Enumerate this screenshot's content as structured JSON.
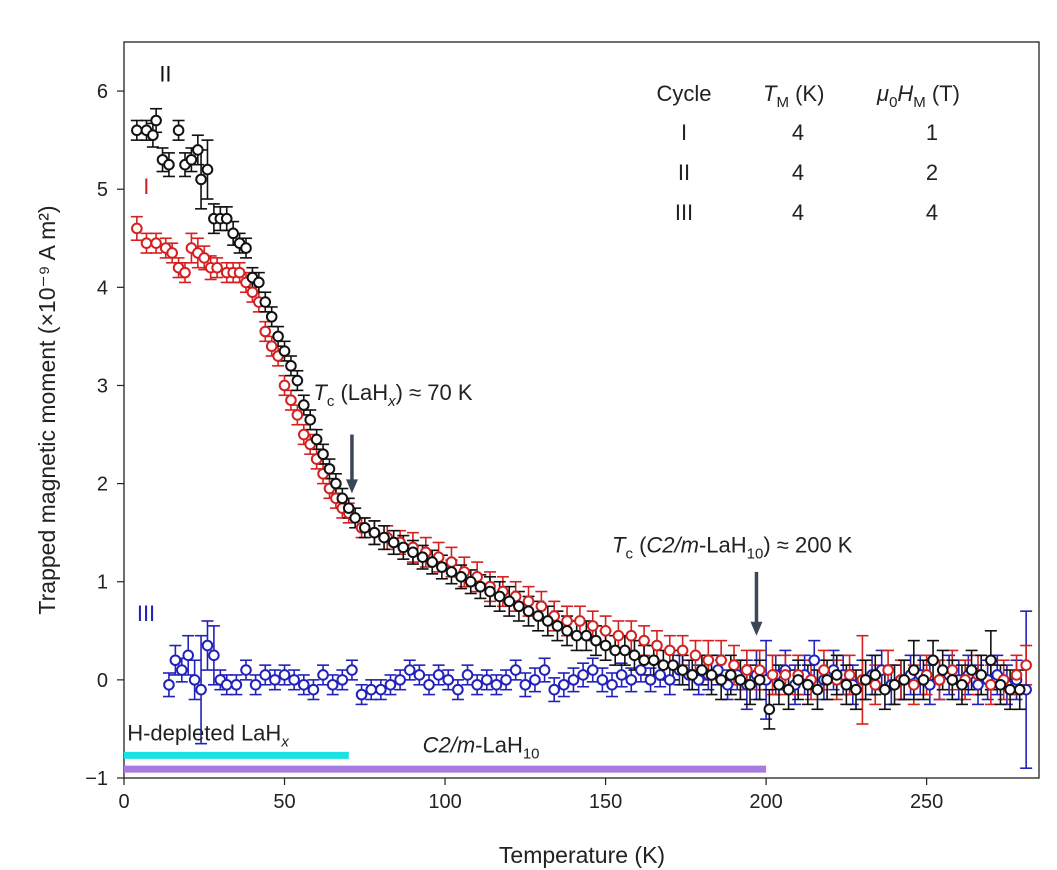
{
  "chart_data": {
    "type": "scatter",
    "title": "",
    "xlabel": "Temperature (K)",
    "ylabel": "Trapped magnetic moment (×10⁻⁹ A m²)",
    "xlim": [
      0,
      285
    ],
    "ylim": [
      -1.0,
      6.5
    ],
    "xticks": [
      "0",
      "50",
      "100",
      "150",
      "200",
      "250"
    ],
    "xtick_values": [
      0,
      50,
      100,
      150,
      200,
      250
    ],
    "yticks": [
      "−1",
      "0",
      "1",
      "2",
      "3",
      "4",
      "5",
      "6"
    ],
    "ytick_values": [
      -1,
      0,
      1,
      2,
      3,
      4,
      5,
      6
    ],
    "grid": false,
    "series": [
      {
        "name": "I",
        "color": "#d42020",
        "label_at": [
          6,
          4.95
        ],
        "x": [
          4,
          7,
          10,
          13,
          15,
          17,
          19,
          21,
          23,
          25,
          27,
          29,
          32,
          34,
          36,
          38,
          40,
          42,
          44,
          46,
          48,
          50,
          52,
          54,
          56,
          58,
          60,
          62,
          64,
          66,
          68,
          70,
          74,
          78,
          82,
          86,
          90,
          94,
          98,
          102,
          106,
          110,
          114,
          118,
          122,
          126,
          130,
          134,
          138,
          142,
          146,
          150,
          154,
          158,
          162,
          166,
          170,
          174,
          178,
          182,
          186,
          190,
          194,
          198,
          202,
          206,
          210,
          214,
          218,
          222,
          226,
          230,
          234,
          238,
          242,
          246,
          250,
          254,
          258,
          262,
          266,
          270,
          274,
          278,
          281
        ],
        "y": [
          4.6,
          4.45,
          4.45,
          4.4,
          4.35,
          4.2,
          4.15,
          4.4,
          4.35,
          4.3,
          4.2,
          4.2,
          4.15,
          4.15,
          4.15,
          4.05,
          3.95,
          3.85,
          3.55,
          3.4,
          3.3,
          3.0,
          2.85,
          2.7,
          2.5,
          2.4,
          2.25,
          2.1,
          1.95,
          1.85,
          1.75,
          1.7,
          1.55,
          1.5,
          1.45,
          1.4,
          1.35,
          1.3,
          1.25,
          1.2,
          1.1,
          1.05,
          0.95,
          0.9,
          0.85,
          0.8,
          0.75,
          0.65,
          0.6,
          0.6,
          0.55,
          0.5,
          0.45,
          0.45,
          0.4,
          0.35,
          0.3,
          0.3,
          0.25,
          0.2,
          0.2,
          0.15,
          0.1,
          0.1,
          0.05,
          0.05,
          0.05,
          0.0,
          0.1,
          0.0,
          0.05,
          0.0,
          -0.05,
          0.1,
          0.0,
          -0.05,
          0.05,
          0.0,
          0.1,
          0.0,
          0.05,
          -0.05,
          0.0,
          0.05,
          0.15
        ],
        "err": [
          0.12,
          0.1,
          0.1,
          0.1,
          0.1,
          0.1,
          0.1,
          0.15,
          0.15,
          0.12,
          0.12,
          0.1,
          0.1,
          0.1,
          0.1,
          0.1,
          0.1,
          0.1,
          0.1,
          0.1,
          0.1,
          0.1,
          0.1,
          0.1,
          0.1,
          0.1,
          0.1,
          0.1,
          0.1,
          0.1,
          0.1,
          0.1,
          0.1,
          0.12,
          0.12,
          0.12,
          0.15,
          0.15,
          0.15,
          0.15,
          0.15,
          0.15,
          0.15,
          0.15,
          0.15,
          0.15,
          0.15,
          0.15,
          0.15,
          0.15,
          0.15,
          0.15,
          0.15,
          0.15,
          0.15,
          0.15,
          0.15,
          0.15,
          0.15,
          0.2,
          0.2,
          0.2,
          0.2,
          0.2,
          0.2,
          0.2,
          0.2,
          0.2,
          0.2,
          0.2,
          0.2,
          0.45,
          0.2,
          0.2,
          0.2,
          0.2,
          0.2,
          0.2,
          0.2,
          0.2,
          0.2,
          0.2,
          0.2,
          0.2,
          0.2
        ]
      },
      {
        "name": "II",
        "color": "#111111",
        "label_at": [
          11,
          6.1
        ],
        "x": [
          4,
          7,
          9,
          10,
          12,
          14,
          17,
          19,
          21,
          23,
          24,
          26,
          28,
          30,
          32,
          34,
          36,
          38,
          40,
          42,
          44,
          46,
          48,
          50,
          52,
          54,
          56,
          58,
          60,
          62,
          64,
          66,
          68,
          70,
          72,
          75,
          78,
          81,
          84,
          87,
          90,
          93,
          96,
          99,
          102,
          105,
          108,
          111,
          114,
          117,
          120,
          123,
          126,
          129,
          132,
          135,
          138,
          141,
          144,
          147,
          150,
          153,
          156,
          159,
          162,
          165,
          168,
          171,
          174,
          177,
          180,
          183,
          186,
          189,
          192,
          195,
          198,
          201,
          204,
          207,
          210,
          213,
          216,
          219,
          222,
          225,
          228,
          231,
          234,
          237,
          240,
          243,
          246,
          249,
          252,
          255,
          258,
          261,
          264,
          267,
          270,
          273,
          276,
          279
        ],
        "y": [
          5.6,
          5.6,
          5.55,
          5.7,
          5.3,
          5.25,
          5.6,
          5.25,
          5.3,
          5.4,
          5.1,
          5.2,
          4.7,
          4.7,
          4.7,
          4.55,
          4.45,
          4.4,
          4.1,
          4.05,
          3.85,
          3.7,
          3.5,
          3.35,
          3.2,
          3.05,
          2.8,
          2.65,
          2.45,
          2.3,
          2.15,
          2.0,
          1.85,
          1.75,
          1.65,
          1.55,
          1.5,
          1.45,
          1.4,
          1.35,
          1.3,
          1.25,
          1.2,
          1.15,
          1.1,
          1.05,
          1.0,
          0.95,
          0.9,
          0.85,
          0.8,
          0.75,
          0.7,
          0.65,
          0.6,
          0.55,
          0.5,
          0.45,
          0.45,
          0.4,
          0.35,
          0.3,
          0.3,
          0.25,
          0.2,
          0.2,
          0.15,
          0.15,
          0.1,
          0.05,
          0.1,
          0.05,
          0.0,
          0.05,
          0.0,
          -0.05,
          0.0,
          -0.3,
          -0.05,
          -0.1,
          0.0,
          -0.05,
          -0.1,
          0.0,
          0.05,
          -0.05,
          -0.1,
          0.0,
          0.05,
          -0.1,
          -0.05,
          0.0,
          0.1,
          0.0,
          0.2,
          0.1,
          0.0,
          -0.05,
          0.1,
          0.05,
          0.2,
          -0.05,
          -0.1,
          -0.1
        ],
        "err": [
          0.1,
          0.1,
          0.12,
          0.12,
          0.12,
          0.12,
          0.1,
          0.12,
          0.12,
          0.15,
          0.3,
          0.3,
          0.15,
          0.12,
          0.12,
          0.12,
          0.1,
          0.1,
          0.1,
          0.1,
          0.1,
          0.1,
          0.1,
          0.1,
          0.1,
          0.1,
          0.1,
          0.1,
          0.1,
          0.1,
          0.1,
          0.1,
          0.1,
          0.1,
          0.1,
          0.1,
          0.12,
          0.12,
          0.12,
          0.12,
          0.12,
          0.12,
          0.12,
          0.12,
          0.12,
          0.12,
          0.12,
          0.12,
          0.15,
          0.15,
          0.15,
          0.15,
          0.15,
          0.15,
          0.15,
          0.15,
          0.15,
          0.15,
          0.15,
          0.15,
          0.15,
          0.15,
          0.15,
          0.15,
          0.15,
          0.15,
          0.15,
          0.15,
          0.15,
          0.15,
          0.15,
          0.2,
          0.2,
          0.2,
          0.2,
          0.2,
          0.2,
          0.2,
          0.2,
          0.2,
          0.2,
          0.2,
          0.2,
          0.2,
          0.2,
          0.2,
          0.2,
          0.2,
          0.2,
          0.2,
          0.2,
          0.2,
          0.3,
          0.2,
          0.2,
          0.2,
          0.2,
          0.2,
          0.2,
          0.2,
          0.3,
          0.2,
          0.2,
          0.2
        ]
      },
      {
        "name": "III",
        "color": "#2222bb",
        "label_at": [
          4,
          0.6
        ],
        "x": [
          14,
          16,
          18,
          20,
          22,
          24,
          26,
          28,
          30,
          32,
          35,
          38,
          41,
          44,
          47,
          50,
          53,
          56,
          59,
          62,
          65,
          68,
          71,
          74,
          77,
          80,
          83,
          86,
          89,
          92,
          95,
          98,
          101,
          104,
          107,
          110,
          113,
          116,
          119,
          122,
          125,
          128,
          131,
          134,
          137,
          140,
          143,
          146,
          149,
          152,
          155,
          158,
          161,
          164,
          167,
          170,
          173,
          176,
          179,
          182,
          185,
          188,
          191,
          194,
          197,
          200,
          203,
          206,
          209,
          212,
          215,
          218,
          221,
          224,
          227,
          230,
          233,
          236,
          239,
          242,
          245,
          248,
          251,
          254,
          257,
          260,
          263,
          266,
          269,
          272,
          275,
          278,
          281
        ],
        "y": [
          -0.05,
          0.2,
          0.1,
          0.25,
          0.0,
          -0.1,
          0.35,
          0.25,
          0.0,
          -0.05,
          -0.05,
          0.1,
          -0.05,
          0.05,
          0.0,
          0.05,
          0.0,
          -0.05,
          -0.1,
          0.05,
          -0.05,
          0.0,
          0.1,
          -0.15,
          -0.1,
          -0.1,
          -0.05,
          0.0,
          0.1,
          0.05,
          -0.05,
          0.05,
          0.0,
          -0.1,
          0.05,
          -0.05,
          0.0,
          -0.05,
          0.0,
          0.1,
          -0.05,
          0.0,
          0.1,
          -0.1,
          -0.05,
          0.0,
          0.05,
          0.1,
          0.0,
          -0.05,
          0.05,
          0.0,
          0.1,
          0.0,
          0.05,
          0.0,
          0.1,
          0.05,
          0.0,
          0.05,
          0.1,
          -0.05,
          0.05,
          -0.05,
          0.05,
          0.0,
          0.05,
          0.1,
          -0.05,
          0.05,
          0.2,
          0.0,
          0.1,
          0.05,
          -0.05,
          0.0,
          0.05,
          0.1,
          -0.05,
          0.0,
          0.05,
          0.05,
          -0.05,
          0.0,
          0.05,
          0.0,
          0.05,
          -0.05,
          0.0,
          0.05,
          -0.05,
          0.0,
          -0.1
        ],
        "err": [
          0.12,
          0.15,
          0.12,
          0.2,
          0.2,
          0.55,
          0.25,
          0.3,
          0.1,
          0.1,
          0.1,
          0.1,
          0.1,
          0.1,
          0.1,
          0.1,
          0.1,
          0.1,
          0.1,
          0.1,
          0.1,
          0.1,
          0.1,
          0.1,
          0.1,
          0.1,
          0.1,
          0.1,
          0.1,
          0.1,
          0.1,
          0.1,
          0.1,
          0.1,
          0.1,
          0.1,
          0.1,
          0.1,
          0.1,
          0.1,
          0.12,
          0.12,
          0.12,
          0.12,
          0.12,
          0.12,
          0.12,
          0.12,
          0.12,
          0.12,
          0.12,
          0.12,
          0.12,
          0.12,
          0.12,
          0.15,
          0.15,
          0.15,
          0.15,
          0.15,
          0.15,
          0.15,
          0.15,
          0.25,
          0.25,
          0.4,
          0.2,
          0.2,
          0.2,
          0.2,
          0.2,
          0.2,
          0.2,
          0.2,
          0.2,
          0.2,
          0.2,
          0.2,
          0.2,
          0.2,
          0.2,
          0.2,
          0.2,
          0.2,
          0.2,
          0.2,
          0.2,
          0.2,
          0.2,
          0.2,
          0.2,
          0.2,
          0.8
        ]
      }
    ],
    "annotations": [
      {
        "id": "lahx",
        "text_main": "T",
        "text_sub": "c",
        "text_rest_1": " (LaH",
        "text_italic": "x",
        "text_rest_2": ") ≈ 70 K",
        "arrow_x": 71,
        "arrow_from": 2.5,
        "arrow_to": 1.9,
        "at": [
          59,
          2.85
        ]
      },
      {
        "id": "c2m",
        "text_main": "T",
        "text_sub": "c",
        "text_rest_1": " (",
        "text_italic": "C2/m",
        "text_rest_2": "-LaH",
        "text_sub2": "10",
        "text_rest_3": ") ≈ 200 K",
        "arrow_x": 197,
        "arrow_from": 1.1,
        "arrow_to": 0.45,
        "at": [
          152,
          1.3
        ]
      }
    ],
    "bars": [
      {
        "id": "h-depleted",
        "label_main": "H-depleted LaH",
        "label_sub": "x",
        "x0": 0,
        "x1": 70,
        "y": -0.77,
        "color": "#18e2e2",
        "label_at": [
          1,
          -0.62
        ]
      },
      {
        "id": "c2m-lah10",
        "label_italic": "C2/m",
        "label_main": "-LaH",
        "label_sub": "10",
        "x0": 0,
        "x1": 200,
        "y": -0.91,
        "color": "#a97be0",
        "label_at": [
          93,
          -0.74
        ]
      }
    ],
    "table": {
      "headers": {
        "cycle": "Cycle",
        "tm_main": "T",
        "tm_sub": "M",
        "tm_unit": " (K)",
        "h_mu": "μ",
        "h_sub0": "0",
        "h_main": "H",
        "h_sub": "M",
        "h_unit": " (T)"
      },
      "rows": [
        {
          "cycle": "I",
          "tm": "4",
          "h": "1"
        },
        {
          "cycle": "II",
          "tm": "4",
          "h": "2"
        },
        {
          "cycle": "III",
          "tm": "4",
          "h": "4"
        }
      ]
    }
  }
}
